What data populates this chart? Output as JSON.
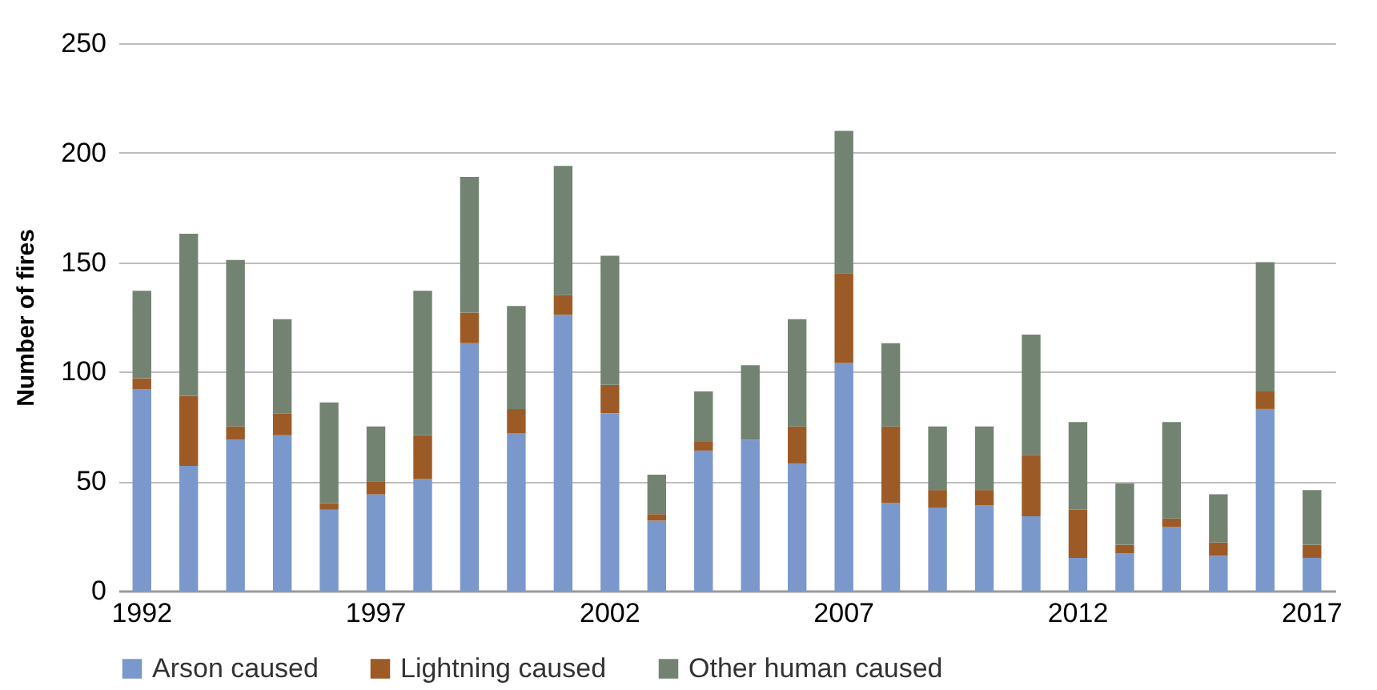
{
  "chart_data": {
    "type": "bar",
    "stacked": true,
    "ylabel": "Number of fires",
    "categories": [
      "1992",
      null,
      null,
      null,
      null,
      "1997",
      null,
      null,
      null,
      null,
      "2002",
      null,
      null,
      null,
      null,
      "2007",
      null,
      null,
      null,
      null,
      "2012",
      null,
      null,
      null,
      null,
      "2017"
    ],
    "series": [
      {
        "name": "Arson caused",
        "color": "#7a98cc",
        "values": [
          92,
          57,
          69,
          71,
          37,
          44,
          51,
          113,
          72,
          126,
          81,
          32,
          64,
          69,
          58,
          104,
          40,
          38,
          39,
          34,
          15,
          17,
          29,
          16,
          83,
          15
        ]
      },
      {
        "name": "Lightning caused",
        "color": "#9c5b26",
        "values": [
          5,
          32,
          6,
          10,
          3,
          6,
          20,
          14,
          11,
          9,
          13,
          3,
          4,
          0,
          17,
          41,
          35,
          8,
          7,
          28,
          22,
          4,
          4,
          6,
          8,
          6
        ]
      },
      {
        "name": "Other human caused",
        "color": "#728471",
        "values": [
          40,
          74,
          76,
          43,
          46,
          25,
          66,
          62,
          47,
          59,
          59,
          18,
          23,
          34,
          49,
          65,
          38,
          29,
          29,
          55,
          40,
          28,
          44,
          22,
          59,
          25
        ]
      }
    ],
    "ylim": [
      0,
      250
    ],
    "yticks": [
      0,
      50,
      100,
      150,
      200,
      250
    ],
    "grid": "y",
    "legend": "bottom"
  }
}
